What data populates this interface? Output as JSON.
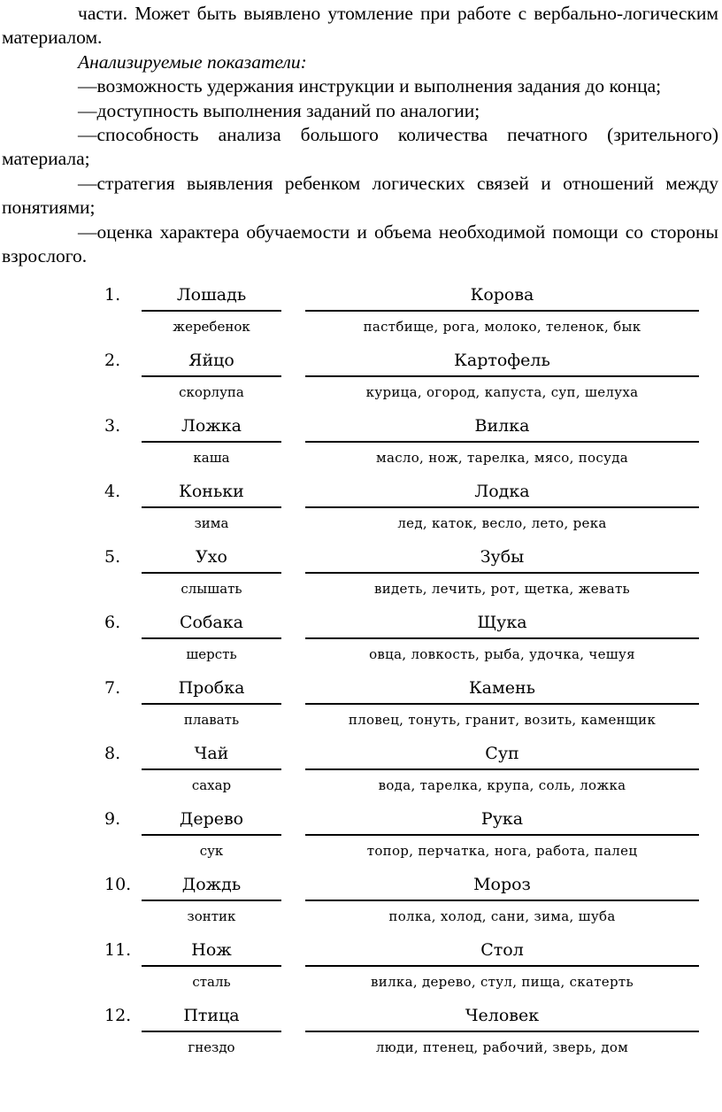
{
  "paragraphs": [
    "части. Может быть выявлено утомление при работе с вербально-логическим материалом.",
    "Анализируемые показатели:",
    "—возможность удержания инструкции и выполнения задания до конца;",
    "—доступность выполнения заданий по аналогии;",
    "—способность анализа большого количества печатного (зрительного) материала;",
    "—стратегия выявления ребенком логических связей и отношений между понятиями;",
    "—оценка характера обучаемости и объема необходимой помощи со стороны взрослого."
  ],
  "items": [
    {
      "num": "1.",
      "left": "Лошадь",
      "right": "Корова",
      "left_answer": "жеребенок",
      "right_options": "пастбище, рога, молоко, теленок, бык"
    },
    {
      "num": "2.",
      "left": "Яйцо",
      "right": "Картофель",
      "left_answer": "скорлупа",
      "right_options": "курица, огород, капуста, суп, шелуха"
    },
    {
      "num": "3.",
      "left": "Ложка",
      "right": "Вилка",
      "left_answer": "каша",
      "right_options": "масло, нож, тарелка, мясо, посуда"
    },
    {
      "num": "4.",
      "left": "Коньки",
      "right": "Лодка",
      "left_answer": "зима",
      "right_options": "лед, каток, весло, лето, река"
    },
    {
      "num": "5.",
      "left": "Ухо",
      "right": "Зубы",
      "left_answer": "слышать",
      "right_options": "видеть, лечить, рот, щетка, жевать"
    },
    {
      "num": "6.",
      "left": "Собака",
      "right": "Щука",
      "left_answer": "шерсть",
      "right_options": "овца, ловкость, рыба, удочка, чешуя"
    },
    {
      "num": "7.",
      "left": "Пробка",
      "right": "Камень",
      "left_answer": "плавать",
      "right_options": "пловец, тонуть, гранит, возить, каменщик"
    },
    {
      "num": "8.",
      "left": "Чай",
      "right": "Суп",
      "left_answer": "сахар",
      "right_options": "вода, тарелка, крупа, соль, ложка"
    },
    {
      "num": "9.",
      "left": "Дерево",
      "right": "Рука",
      "left_answer": "сук",
      "right_options": "топор, перчатка, нога, работа, палец"
    },
    {
      "num": "10.",
      "left": "Дождь",
      "right": "Мороз",
      "left_answer": "зонтик",
      "right_options": "полка, холод, сани, зима, шуба"
    },
    {
      "num": "11.",
      "left": "Нож",
      "right": "Стол",
      "left_answer": "сталь",
      "right_options": "вилка, дерево, стул, пища, скатерть"
    },
    {
      "num": "12.",
      "left": "Птица",
      "right": "Человек",
      "left_answer": "гнездо",
      "right_options": "люди, птенец, рабочий, зверь, дом"
    }
  ]
}
